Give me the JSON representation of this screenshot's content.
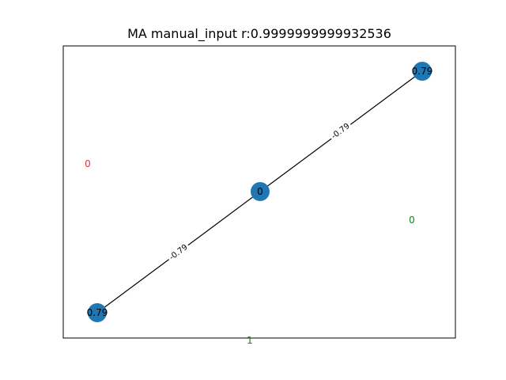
{
  "title": "MA manual_input r:0.9999999999932536",
  "graph": {
    "nodes": [
      {
        "id": "top-right",
        "label": "0.79"
      },
      {
        "id": "center",
        "label": "0"
      },
      {
        "id": "bottom-left",
        "label": "0.79"
      }
    ],
    "edges": [
      {
        "from": "center",
        "to": "top-right",
        "label": "-0.79"
      },
      {
        "from": "bottom-left",
        "to": "center",
        "label": "-0.79"
      }
    ],
    "colors": {
      "node": "#1f77b4",
      "edge": "#000000"
    }
  },
  "annotations": [
    {
      "id": "red",
      "text": "0",
      "color": "#e8312f"
    },
    {
      "id": "green-right",
      "text": "0",
      "color": "#138613"
    },
    {
      "id": "green-bottom",
      "text": "1",
      "color": "#138613"
    }
  ]
}
